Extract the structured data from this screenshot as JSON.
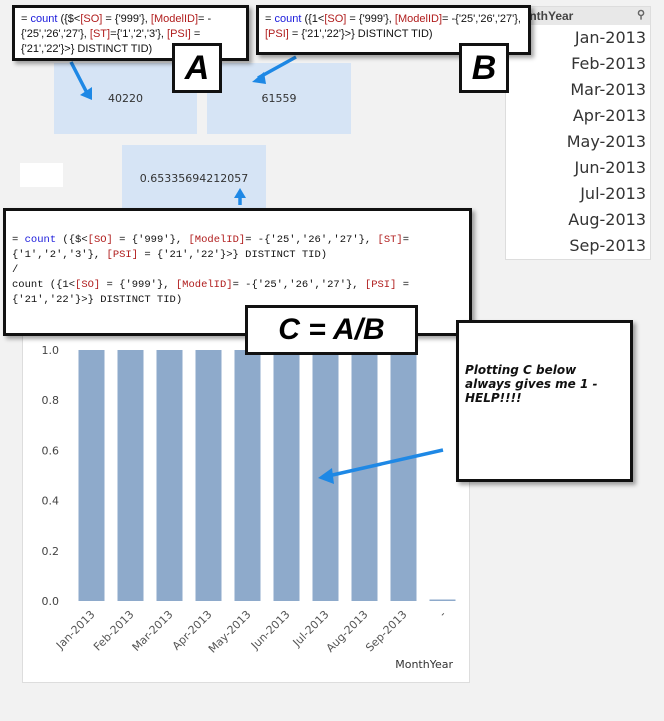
{
  "kpis": {
    "a_value": "40220",
    "b_value": "61559",
    "c_value": "0.65335694212057"
  },
  "callouts": {
    "a_expr": [
      "= ",
      "count",
      " ({$<",
      "[SO]",
      " = {'999'}, ",
      "[ModelID]",
      "= -{'25','26','27'}, ",
      "[ST]",
      "={'1','2','3'}, ",
      "[PSI]",
      " = {'21','22'}>} DISTINCT TID)"
    ],
    "b_expr": [
      "= ",
      "count",
      " ({1<",
      "[SO]",
      " = {'999'}, ",
      "[ModelID]",
      "= -{'25','26','27'}, ",
      "[PSI]",
      " = {'21','22'}>} DISTINCT TID)"
    ],
    "c_expr_num": [
      "= ",
      "count",
      " ({$<",
      "[SO]",
      " = {'999'}, ",
      "[ModelID]",
      "= -{'25','26','27'}, ",
      "[ST]",
      "= {'1','2','3'}, ",
      "[PSI]",
      " = {'21','22'}>} DISTINCT TID)"
    ],
    "c_div": "/",
    "c_expr_den": [
      "count ({1<",
      "[SO]",
      " = {'999'}, ",
      "[ModelID]",
      "= -{'25','26','27'}, ",
      "[PSI]",
      " = {'21','22'}>} DISTINCT TID)"
    ],
    "a_label": "A",
    "b_label": "B",
    "c_label": "C = A/B",
    "help_text": "Plotting C below always gives me 1 - HELP!!!!"
  },
  "listbox": {
    "title": "MonthYear",
    "icon": "search-icon",
    "items": [
      "Jan-2013",
      "Feb-2013",
      "Mar-2013",
      "Apr-2013",
      "May-2013",
      "Jun-2013",
      "Jul-2013",
      "Aug-2013",
      "Sep-2013"
    ]
  },
  "colors": {
    "bar": "#8eaacb",
    "kpi_bg": "#d6e4f5",
    "arrow": "#1e88e5"
  },
  "chart_data": {
    "type": "bar",
    "categories": [
      "Jan-2013",
      "Feb-2013",
      "Mar-2013",
      "Apr-2013",
      "May-2013",
      "Jun-2013",
      "Jul-2013",
      "Aug-2013",
      "Sep-2013",
      "-"
    ],
    "values": [
      1,
      1,
      1,
      1,
      1,
      1,
      1,
      1,
      1,
      0
    ],
    "xlabel": "MonthYear",
    "ylabel": "",
    "ylim": [
      0,
      1
    ],
    "yticks": [
      "0.0",
      "0.2",
      "0.4",
      "0.6",
      "0.8",
      "1.0"
    ]
  }
}
